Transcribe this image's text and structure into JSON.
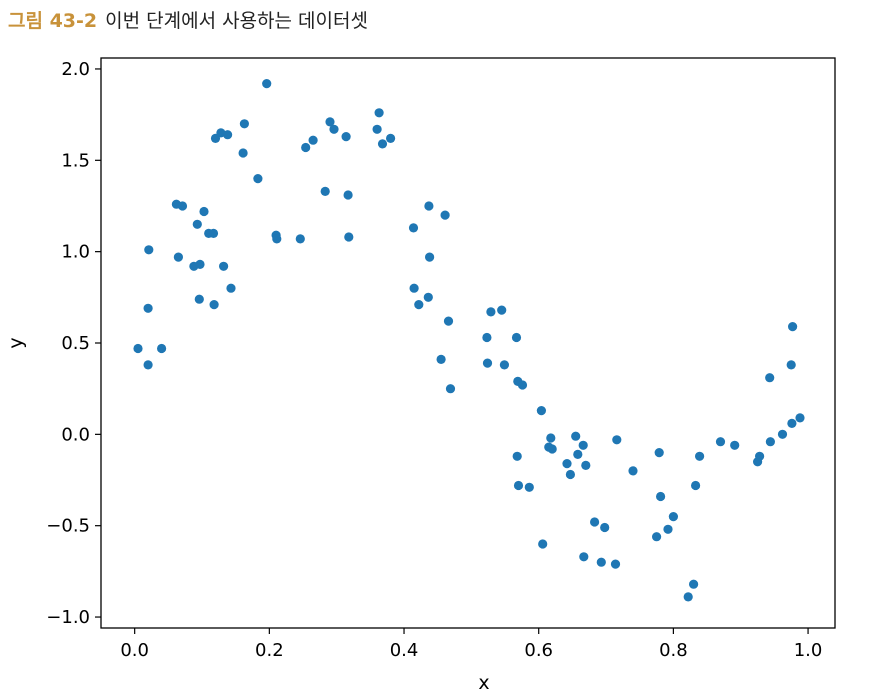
{
  "caption": {
    "label": "그림 43-2",
    "text": "이번 단계에서 사용하는 데이터셋"
  },
  "colors": {
    "point": "#1f77b4",
    "caption_label": "#c8923a"
  },
  "chart_data": {
    "type": "scatter",
    "title": "",
    "xlabel": "x",
    "ylabel": "y",
    "xlim": [
      -0.05,
      1.04
    ],
    "ylim": [
      -1.06,
      2.06
    ],
    "xticks": [
      0.0,
      0.2,
      0.4,
      0.6,
      0.8,
      1.0
    ],
    "xtick_labels": [
      "0.0",
      "0.2",
      "0.4",
      "0.6",
      "0.8",
      "1.0"
    ],
    "yticks": [
      -1.0,
      -0.5,
      0.0,
      0.5,
      1.0,
      1.5,
      2.0
    ],
    "ytick_labels": [
      "−1.0",
      "−0.5",
      "0.0",
      "0.5",
      "1.0",
      "1.5",
      "2.0"
    ],
    "grid": false,
    "points": [
      [
        0.005,
        0.47
      ],
      [
        0.02,
        0.69
      ],
      [
        0.02,
        0.38
      ],
      [
        0.021,
        1.01
      ],
      [
        0.04,
        0.47
      ],
      [
        0.062,
        1.26
      ],
      [
        0.065,
        0.97
      ],
      [
        0.071,
        1.25
      ],
      [
        0.088,
        0.92
      ],
      [
        0.093,
        1.15
      ],
      [
        0.096,
        0.74
      ],
      [
        0.097,
        0.93
      ],
      [
        0.103,
        1.22
      ],
      [
        0.11,
        1.1
      ],
      [
        0.117,
        1.1
      ],
      [
        0.118,
        0.71
      ],
      [
        0.12,
        1.62
      ],
      [
        0.128,
        1.65
      ],
      [
        0.132,
        0.92
      ],
      [
        0.138,
        1.64
      ],
      [
        0.143,
        0.8
      ],
      [
        0.161,
        1.54
      ],
      [
        0.163,
        1.7
      ],
      [
        0.183,
        1.4
      ],
      [
        0.196,
        1.92
      ],
      [
        0.21,
        1.09
      ],
      [
        0.211,
        1.07
      ],
      [
        0.246,
        1.07
      ],
      [
        0.254,
        1.57
      ],
      [
        0.265,
        1.61
      ],
      [
        0.283,
        1.33
      ],
      [
        0.29,
        1.71
      ],
      [
        0.296,
        1.67
      ],
      [
        0.314,
        1.63
      ],
      [
        0.317,
        1.31
      ],
      [
        0.318,
        1.08
      ],
      [
        0.36,
        1.67
      ],
      [
        0.363,
        1.76
      ],
      [
        0.368,
        1.59
      ],
      [
        0.38,
        1.62
      ],
      [
        0.414,
        1.13
      ],
      [
        0.415,
        0.8
      ],
      [
        0.422,
        0.71
      ],
      [
        0.436,
        0.75
      ],
      [
        0.437,
        1.25
      ],
      [
        0.438,
        0.97
      ],
      [
        0.455,
        0.41
      ],
      [
        0.461,
        1.2
      ],
      [
        0.466,
        0.62
      ],
      [
        0.469,
        0.25
      ],
      [
        0.523,
        0.53
      ],
      [
        0.524,
        0.39
      ],
      [
        0.529,
        0.67
      ],
      [
        0.545,
        0.68
      ],
      [
        0.549,
        0.38
      ],
      [
        0.567,
        0.53
      ],
      [
        0.568,
        -0.12
      ],
      [
        0.569,
        0.29
      ],
      [
        0.57,
        -0.28
      ],
      [
        0.576,
        0.27
      ],
      [
        0.586,
        -0.29
      ],
      [
        0.604,
        0.13
      ],
      [
        0.606,
        -0.6
      ],
      [
        0.615,
        -0.07
      ],
      [
        0.618,
        -0.02
      ],
      [
        0.62,
        -0.08
      ],
      [
        0.642,
        -0.16
      ],
      [
        0.647,
        -0.22
      ],
      [
        0.655,
        -0.01
      ],
      [
        0.658,
        -0.11
      ],
      [
        0.666,
        -0.06
      ],
      [
        0.667,
        -0.67
      ],
      [
        0.67,
        -0.17
      ],
      [
        0.683,
        -0.48
      ],
      [
        0.693,
        -0.7
      ],
      [
        0.698,
        -0.51
      ],
      [
        0.714,
        -0.71
      ],
      [
        0.716,
        -0.03
      ],
      [
        0.74,
        -0.2
      ],
      [
        0.775,
        -0.56
      ],
      [
        0.779,
        -0.1
      ],
      [
        0.781,
        -0.34
      ],
      [
        0.792,
        -0.52
      ],
      [
        0.8,
        -0.45
      ],
      [
        0.822,
        -0.89
      ],
      [
        0.83,
        -0.82
      ],
      [
        0.833,
        -0.28
      ],
      [
        0.839,
        -0.12
      ],
      [
        0.87,
        -0.04
      ],
      [
        0.891,
        -0.06
      ],
      [
        0.925,
        -0.15
      ],
      [
        0.928,
        -0.12
      ],
      [
        0.943,
        0.31
      ],
      [
        0.944,
        -0.04
      ],
      [
        0.962,
        0.0
      ],
      [
        0.975,
        0.38
      ],
      [
        0.976,
        0.06
      ],
      [
        0.977,
        0.59
      ],
      [
        0.988,
        0.09
      ]
    ]
  }
}
